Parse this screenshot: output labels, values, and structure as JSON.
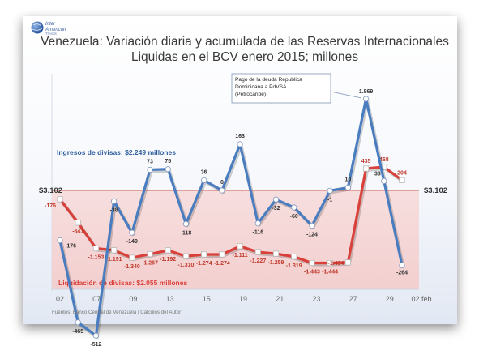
{
  "logo": {
    "line1": "Inter",
    "line2": "American",
    "line3": "Trends"
  },
  "colors": {
    "ingresos": "#4a7dbf",
    "liquidacion": "#d9403a",
    "band": "#f6d5d5",
    "baseline": "#c0392b",
    "axis_text": "#666666"
  },
  "chart_data": {
    "type": "line",
    "title": "Venezuela: Variación diaria y acumulada de las Reservas Internacionales Liquidas en el BCV enero 2015; millones",
    "x_ticks": [
      "02",
      "07",
      "09",
      "13",
      "15",
      "19",
      "21",
      "23",
      "27",
      "29",
      "02 feb"
    ],
    "baseline_label_left": "$3.102",
    "baseline_label_right": "$3.102",
    "footer": "Fuentes: Banco Central de Venezuela | Cálculos del Autor",
    "annotation": {
      "lines": [
        "Pago de la deuda Republica",
        "Dominicana a  PdVSA",
        "(Petrocaribe)"
      ]
    },
    "series": [
      {
        "name": "Ingresos de divisas: $2.249 millones",
        "values": [
          -176,
          -465,
          -512,
          -38,
          -149,
          73,
          75,
          -118,
          36,
          0,
          163,
          -116,
          -32,
          -60,
          -124,
          -1,
          10,
          1869,
          33,
          -264
        ],
        "labels": [
          "-176",
          "-465",
          "-512",
          "-38",
          "-149",
          "73",
          "75",
          "-118",
          "36",
          "0",
          "163",
          "-116",
          "-32",
          "-60",
          "-124",
          "-1",
          "10",
          "1.869",
          "33",
          "-264"
        ]
      },
      {
        "name": "Liquidación de divisas: $2.055 millones",
        "values": [
          -176,
          -641,
          -1153,
          -1191,
          -1340,
          -1267,
          -1192,
          -1310,
          -1274,
          -1274,
          -1111,
          -1227,
          -1259,
          -1319,
          -1443,
          -1444,
          -1434,
          435,
          468,
          204
        ],
        "labels": [
          "-176",
          "-641",
          "-1.153",
          "-1.191",
          "-1.340",
          "-1.267",
          "-1.192",
          "-1.310",
          "-1.274",
          "-1.274",
          "-1.111",
          "-1.227",
          "-1.259",
          "-1.319",
          "-1.443",
          "-1.444",
          "-1.434",
          "435",
          "468",
          "204"
        ]
      }
    ]
  }
}
